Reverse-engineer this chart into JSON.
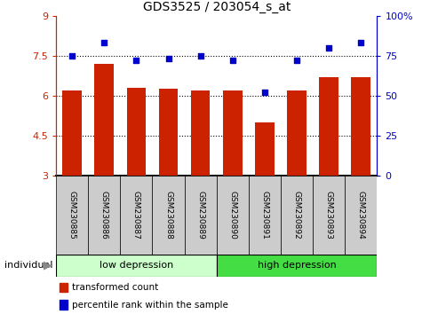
{
  "title": "GDS3525 / 203054_s_at",
  "samples": [
    "GSM230885",
    "GSM230886",
    "GSM230887",
    "GSM230888",
    "GSM230889",
    "GSM230890",
    "GSM230891",
    "GSM230892",
    "GSM230893",
    "GSM230894"
  ],
  "bar_values": [
    6.2,
    7.2,
    6.3,
    6.25,
    6.2,
    6.2,
    5.0,
    6.2,
    6.7,
    6.7
  ],
  "percentile_values": [
    75,
    83,
    72,
    73,
    75,
    72,
    52,
    72,
    80,
    83
  ],
  "bar_color": "#cc2200",
  "dot_color": "#0000cc",
  "ylim_left": [
    3,
    9
  ],
  "ylim_right": [
    0,
    100
  ],
  "yticks_left": [
    3,
    4.5,
    6,
    7.5,
    9
  ],
  "ytick_labels_left": [
    "3",
    "4.5",
    "6",
    "7.5",
    "9"
  ],
  "yticks_right": [
    0,
    25,
    50,
    75,
    100
  ],
  "ytick_labels_right": [
    "0",
    "25",
    "50",
    "75",
    "100%"
  ],
  "group1_label": "low depression",
  "group2_label": "high depression",
  "group1_count": 5,
  "group2_count": 5,
  "individual_label": "individual",
  "legend_bar_label": "transformed count",
  "legend_dot_label": "percentile rank within the sample",
  "tick_label_bg": "#cccccc",
  "group1_bg": "#ccffcc",
  "group2_bg": "#44dd44",
  "bar_base": 3.0,
  "bar_width": 0.6,
  "gridline_color": "#000000",
  "gridline_values": [
    4.5,
    6.0,
    7.5
  ]
}
